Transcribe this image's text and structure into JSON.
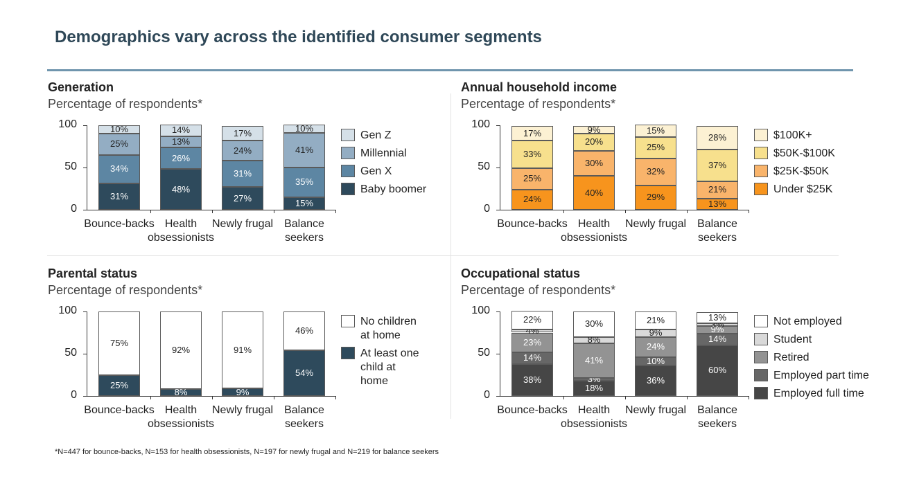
{
  "title": "Demographics vary across the identified consumer segments",
  "footnote": "*N=447 for bounce-backs, N=153 for health obsessionists, N=197 for newly frugal and N=219 for balance seekers",
  "chart_data": [
    {
      "type": "bar",
      "stacked": true,
      "title": "Generation",
      "subtitle": "Percentage of respondents*",
      "categories": [
        "Bounce-backs",
        "Health obsessionists",
        "Newly frugal",
        "Balance seekers"
      ],
      "ylim": [
        0,
        100
      ],
      "yticks": [
        0,
        50,
        100
      ],
      "series": [
        {
          "name": "Baby boomer",
          "color": "#2e4a5c",
          "label_color": "#ffffff",
          "values": [
            31,
            48,
            27,
            15
          ],
          "value_labels": [
            "31%",
            "48%",
            "27%",
            "15%"
          ]
        },
        {
          "name": "Gen X",
          "color": "#5d86a3",
          "label_color": "#ffffff",
          "values": [
            34,
            26,
            31,
            35
          ],
          "value_labels": [
            "34%",
            "26%",
            "31%",
            "35%"
          ]
        },
        {
          "name": "Millennial",
          "color": "#93adc3",
          "label_color": "#222222",
          "values": [
            25,
            13,
            24,
            41
          ],
          "value_labels": [
            "25%",
            "13%",
            "24%",
            "41%"
          ]
        },
        {
          "name": "Gen Z",
          "color": "#d5e0e8",
          "label_color": "#222222",
          "values": [
            10,
            14,
            17,
            10
          ],
          "value_labels": [
            "10%",
            "14%",
            "17%",
            "10%"
          ]
        }
      ]
    },
    {
      "type": "bar",
      "stacked": true,
      "title": "Annual household income",
      "subtitle": "Percentage of respondents*",
      "categories": [
        "Bounce-backs",
        "Health obsessionists",
        "Newly frugal",
        "Balance seekers"
      ],
      "ylim": [
        0,
        100
      ],
      "yticks": [
        0,
        50,
        100
      ],
      "series": [
        {
          "name": "Under $25K",
          "color": "#f7941d",
          "label_color": "#222222",
          "values": [
            24,
            40,
            29,
            13
          ],
          "value_labels": [
            "24%",
            "40%",
            "29%",
            "13%"
          ]
        },
        {
          "name": "$25K-$50K",
          "color": "#f9b46b",
          "label_color": "#222222",
          "values": [
            25,
            30,
            32,
            21
          ],
          "value_labels": [
            "25%",
            "30%",
            "32%",
            "21%"
          ]
        },
        {
          "name": "$50K-$100K",
          "color": "#f7e08d",
          "label_color": "#222222",
          "values": [
            33,
            20,
            25,
            37
          ],
          "value_labels": [
            "33%",
            "20%",
            "25%",
            "37%"
          ]
        },
        {
          "name": "$100K+",
          "color": "#fcf1d3",
          "label_color": "#222222",
          "values": [
            17,
            9,
            15,
            28
          ],
          "value_labels": [
            "17%",
            "9%",
            "15%",
            "28%"
          ]
        }
      ]
    },
    {
      "type": "bar",
      "stacked": true,
      "title": "Parental status",
      "subtitle": "Percentage of respondents*",
      "categories": [
        "Bounce-backs",
        "Health obsessionists",
        "Newly frugal",
        "Balance seekers"
      ],
      "ylim": [
        0,
        100
      ],
      "yticks": [
        0,
        50,
        100
      ],
      "series": [
        {
          "name": "At least one child at home",
          "color": "#2e4a5c",
          "label_color": "#ffffff",
          "values": [
            25,
            8,
            9,
            54
          ],
          "value_labels": [
            "25%",
            "8%",
            "9%",
            "54%"
          ]
        },
        {
          "name": "No children at home",
          "color": "#ffffff",
          "label_color": "#222222",
          "values": [
            75,
            92,
            91,
            46
          ],
          "value_labels": [
            "75%",
            "92%",
            "91%",
            "46%"
          ]
        }
      ]
    },
    {
      "type": "bar",
      "stacked": true,
      "title": "Occupational status",
      "subtitle": "Percentage of respondents*",
      "categories": [
        "Bounce-backs",
        "Health obsessionists",
        "Newly frugal",
        "Balance seekers"
      ],
      "ylim": [
        0,
        100
      ],
      "yticks": [
        0,
        50,
        100
      ],
      "series": [
        {
          "name": "Employed full time",
          "color": "#464646",
          "label_color": "#ffffff",
          "values": [
            38,
            18,
            36,
            60
          ],
          "value_labels": [
            "38%",
            "18%",
            "36%",
            "60%"
          ]
        },
        {
          "name": "Employed part time",
          "color": "#676767",
          "label_color": "#ffffff",
          "values": [
            14,
            3,
            10,
            14
          ],
          "value_labels": [
            "14%",
            "3%",
            "10%",
            "14%"
          ]
        },
        {
          "name": "Retired",
          "color": "#939393",
          "label_color": "#ffffff",
          "values": [
            23,
            41,
            24,
            9
          ],
          "value_labels": [
            "23%",
            "41%",
            "24%",
            "9%"
          ]
        },
        {
          "name": "Student",
          "color": "#d9d9d9",
          "label_color": "#222222",
          "values": [
            4,
            8,
            9,
            3
          ],
          "value_labels": [
            "4%",
            "8%",
            "9%",
            "3%"
          ]
        },
        {
          "name": "Not employed",
          "color": "#ffffff",
          "label_color": "#222222",
          "values": [
            22,
            30,
            21,
            13
          ],
          "value_labels": [
            "22%",
            "30%",
            "21%",
            "13%"
          ]
        }
      ]
    }
  ]
}
